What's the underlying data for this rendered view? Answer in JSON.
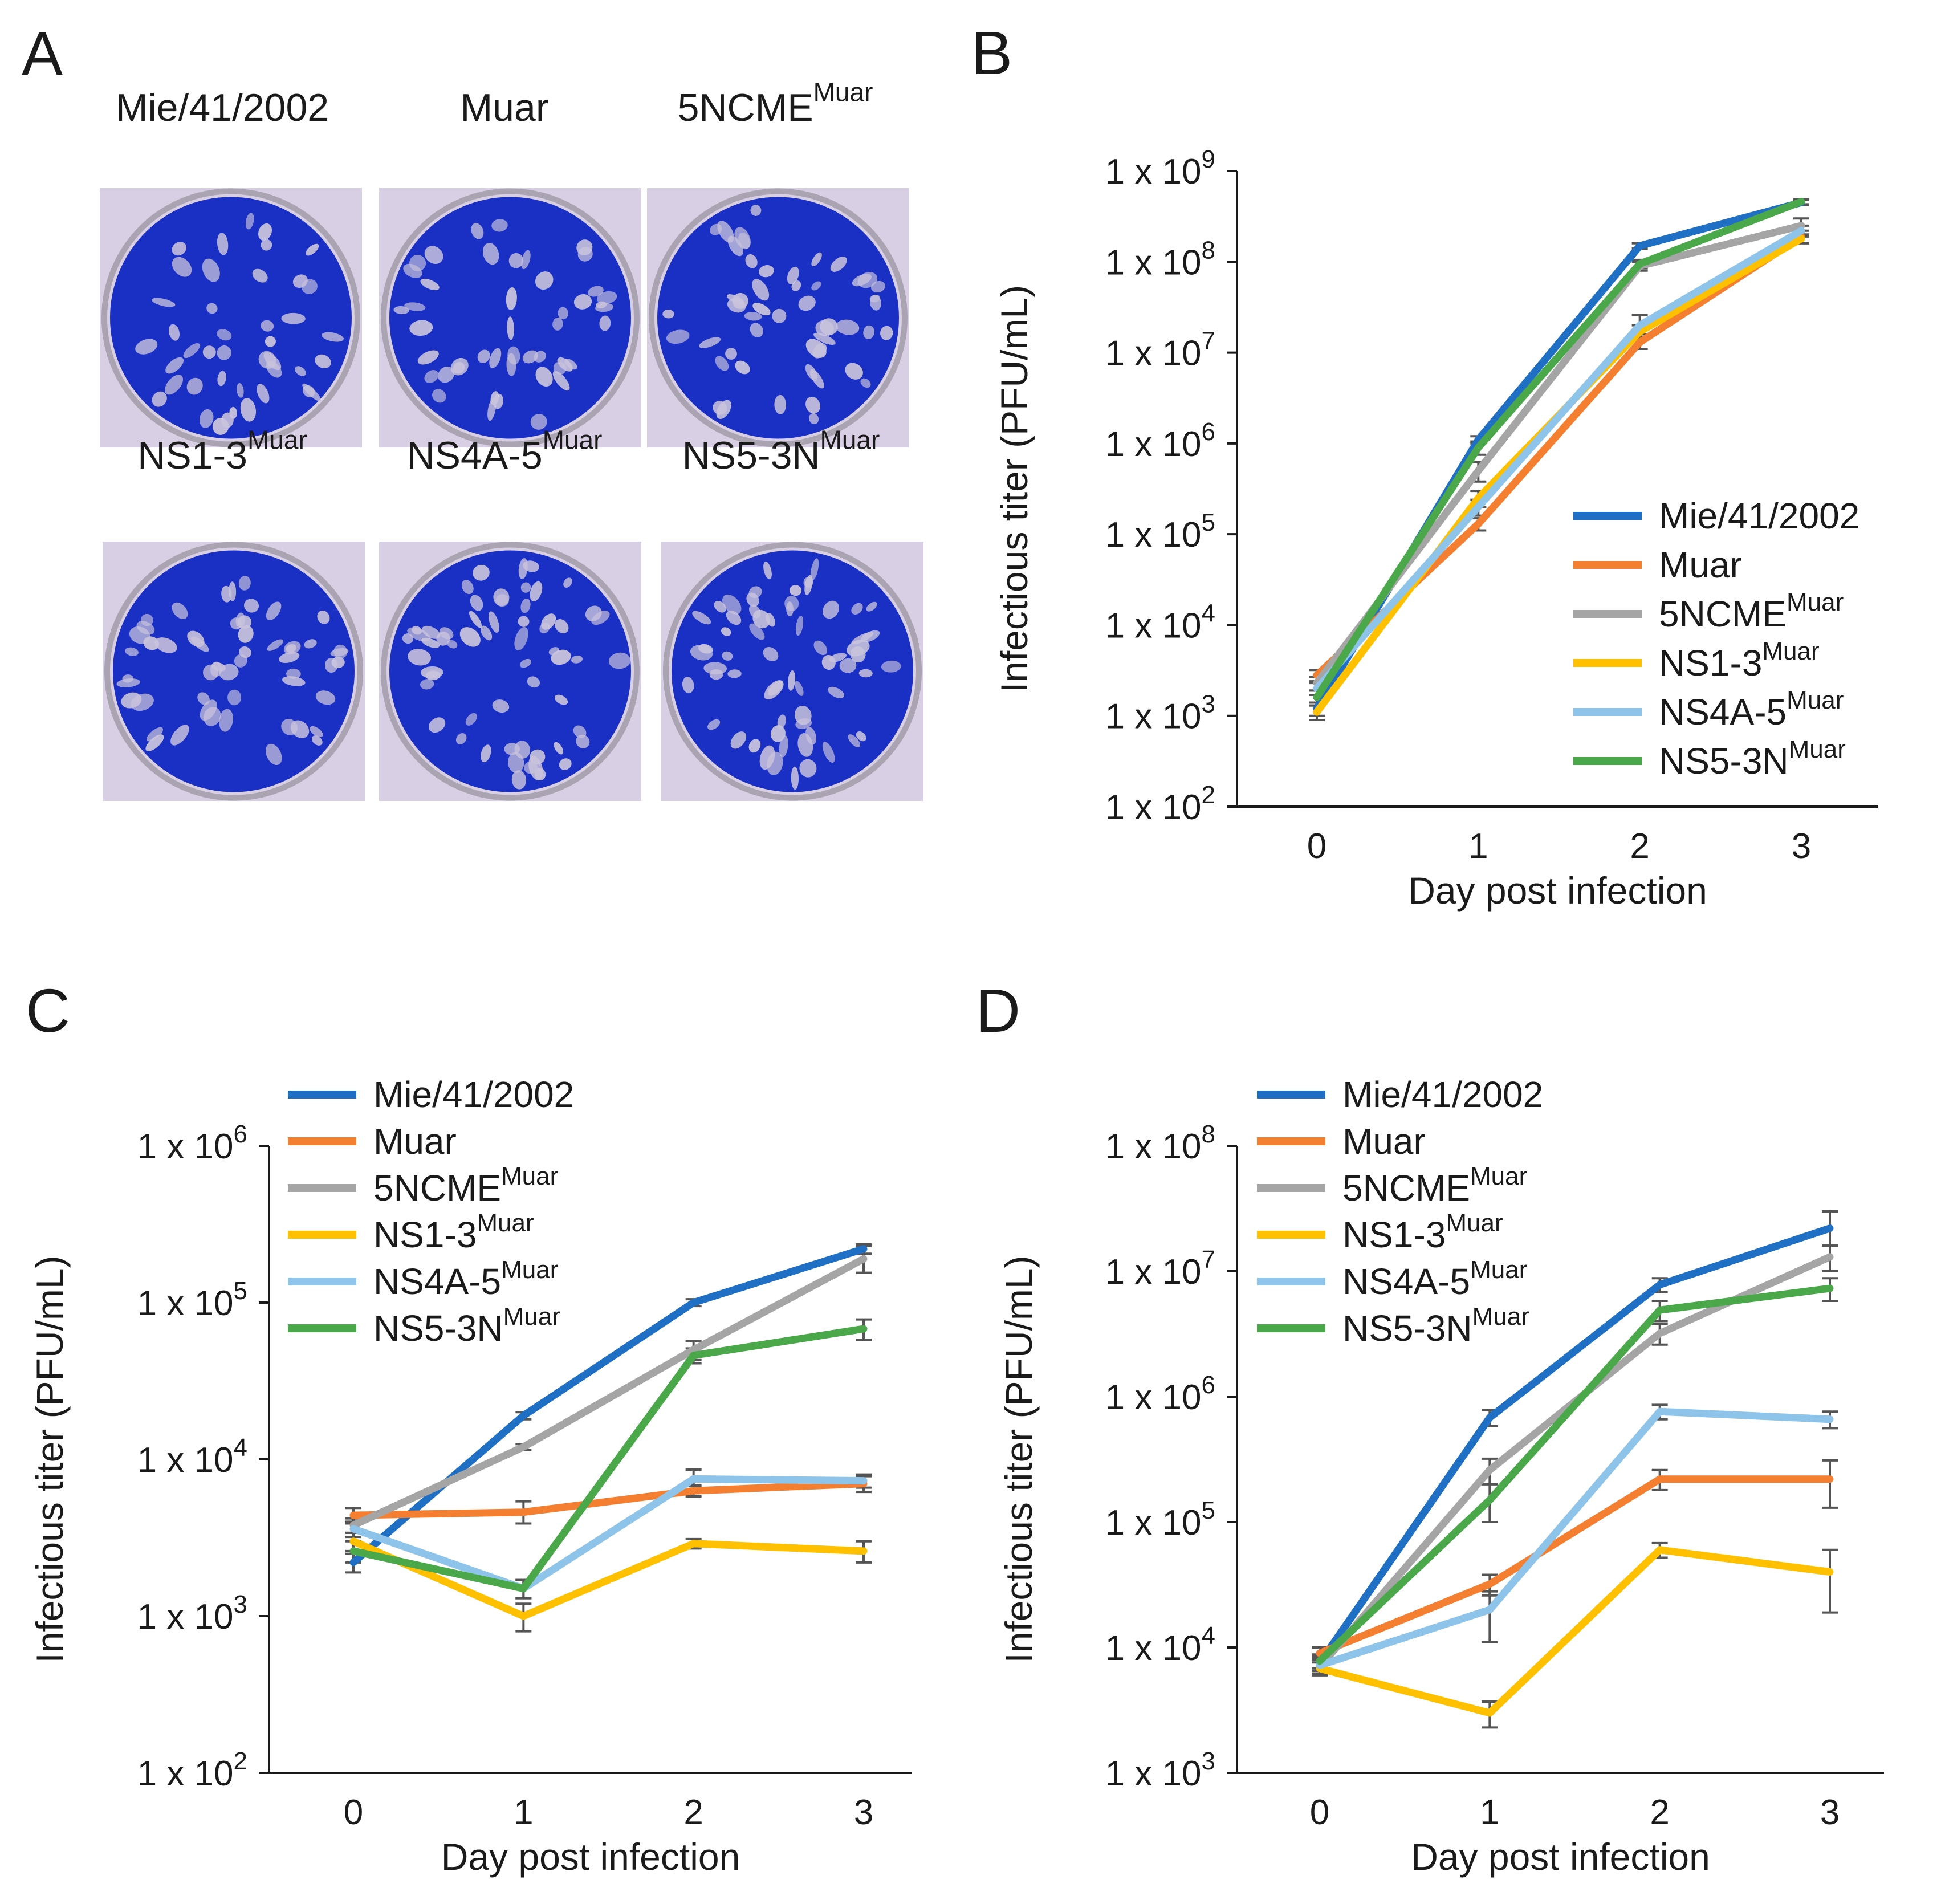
{
  "colors": {
    "Mie/41/2002": "#1f6fc5",
    "Muar": "#f47f30",
    "5NCME": "#a5a5a5",
    "NS1-3": "#ffc000",
    "NS4A-5": "#8ec3ea",
    "NS5-3N": "#4aa84a",
    "well_blue": "#1a2fc4",
    "plate_bg": "#d9cfe4"
  },
  "panel_a": {
    "letter": "A",
    "wells": [
      {
        "name": "Mie/41/2002",
        "sup": ""
      },
      {
        "name": "Muar",
        "sup": ""
      },
      {
        "name": "5NCME",
        "sup": "Muar"
      },
      {
        "name": "NS1-3",
        "sup": "Muar"
      },
      {
        "name": "NS4A-5",
        "sup": "Muar"
      },
      {
        "name": "NS5-3N",
        "sup": "Muar"
      }
    ]
  },
  "chart_data": [
    {
      "panel": "B",
      "type": "line",
      "ylabel": "Infectious titer (PFU/mL)",
      "xlabel": "Day post infection",
      "y_scale": "log",
      "ylim_exp": [
        2,
        9
      ],
      "x": [
        0,
        1,
        2,
        3
      ],
      "x_tick_labels": [
        "0",
        "1",
        "2",
        "3"
      ],
      "y_tick_labels": [
        {
          "base": "1 x 10",
          "exp": "2"
        },
        {
          "base": "1 x 10",
          "exp": "3"
        },
        {
          "base": "1 x 10",
          "exp": "4"
        },
        {
          "base": "1 x 10",
          "exp": "5"
        },
        {
          "base": "1 x 10",
          "exp": "6"
        },
        {
          "base": "1 x 10",
          "exp": "7"
        },
        {
          "base": "1 x 10",
          "exp": "8"
        },
        {
          "base": "1 x 10",
          "exp": "9"
        }
      ],
      "legend_position": "right",
      "series": [
        {
          "name": "Mie/41/2002",
          "sup": "",
          "values": [
            1200.0,
            1100000.0,
            150000000.0,
            450000000.0
          ],
          "err_lo": [
            1000.0,
            1000000.0,
            140000000.0,
            420000000.0
          ],
          "err_hi": [
            1400.0,
            1200000.0,
            160000000.0,
            480000000.0
          ]
        },
        {
          "name": "Muar",
          "sup": "",
          "values": [
            2800.0,
            130000.0,
            13000000.0,
            190000000.0
          ],
          "err_lo": [
            2400.0,
            110000.0,
            11000000.0,
            160000000.0
          ],
          "err_hi": [
            3200.0,
            150000.0,
            15000000.0,
            220000000.0
          ]
        },
        {
          "name": "5NCME",
          "sup": "Muar",
          "values": [
            2300.0,
            500000.0,
            90000000.0,
            250000000.0
          ],
          "err_lo": [
            1900.0,
            380000.0,
            80000000.0,
            200000000.0
          ],
          "err_hi": [
            2700.0,
            620000.0,
            100000000.0,
            300000000.0
          ]
        },
        {
          "name": "NS1-3",
          "sup": "Muar",
          "values": [
            1100.0,
            250000.0,
            17000000.0,
            180000000.0
          ],
          "err_lo": [
            900.0,
            200000.0,
            14000000.0,
            160000000.0
          ],
          "err_hi": [
            1300.0,
            300000.0,
            20000000.0,
            200000000.0
          ]
        },
        {
          "name": "NS4A-5",
          "sup": "Muar",
          "values": [
            2000.0,
            200000.0,
            20000000.0,
            220000000.0
          ],
          "err_lo": [
            1700.0,
            160000.0,
            16000000.0,
            190000000.0
          ],
          "err_hi": [
            2300.0,
            240000.0,
            26000000.0,
            250000000.0
          ]
        },
        {
          "name": "NS5-3N",
          "sup": "Muar",
          "values": [
            1600.0,
            900000.0,
            95000000.0,
            460000000.0
          ],
          "err_lo": [
            1300.0,
            750000.0,
            85000000.0,
            430000000.0
          ],
          "err_hi": [
            1900.0,
            1050000.0,
            105000000.0,
            490000000.0
          ]
        }
      ]
    },
    {
      "panel": "C",
      "type": "line",
      "ylabel": "Infectious titer (PFU/mL)",
      "xlabel": "Day post infection",
      "y_scale": "log",
      "ylim_exp": [
        2,
        6
      ],
      "x": [
        0,
        1,
        2,
        3
      ],
      "x_tick_labels": [
        "0",
        "1",
        "2",
        "3"
      ],
      "y_tick_labels": [
        {
          "base": "1 x 10",
          "exp": "2"
        },
        {
          "base": "1 x 10",
          "exp": "3"
        },
        {
          "base": "1 x 10",
          "exp": "4"
        },
        {
          "base": "1 x 10",
          "exp": "5"
        },
        {
          "base": "1 x 10",
          "exp": "6"
        }
      ],
      "legend_position": "top-left",
      "series": [
        {
          "name": "Mie/41/2002",
          "sup": "",
          "values": [
            2200.0,
            19000.0,
            100000.0,
            220000.0
          ],
          "err_lo": [
            1900.0,
            18000.0,
            95000.0,
            205000.0
          ],
          "err_hi": [
            2500.0,
            20000.0,
            105000.0,
            235000.0
          ]
        },
        {
          "name": "Muar",
          "sup": "",
          "values": [
            4400.0,
            4600.0,
            6300.0,
            7000.0
          ],
          "err_lo": [
            3900.0,
            3900.0,
            5800.0,
            6200.0
          ],
          "err_hi": [
            4900.0,
            5400.0,
            6800.0,
            7800.0
          ]
        },
        {
          "name": "5NCME",
          "sup": "Muar",
          "values": [
            3800.0,
            12000.0,
            50000.0,
            190000.0
          ],
          "err_lo": [
            3400.0,
            11500.0,
            43000.0,
            155000.0
          ],
          "err_hi": [
            4200.0,
            12500.0,
            57000.0,
            230000.0
          ]
        },
        {
          "name": "NS1-3",
          "sup": "Muar",
          "values": [
            3000.0,
            1000.0,
            2900.0,
            2600.0
          ],
          "err_lo": [
            2600.0,
            800.0,
            2700.0,
            2200.0
          ],
          "err_hi": [
            3400.0,
            1200.0,
            3100.0,
            3000.0
          ]
        },
        {
          "name": "NS4A-5",
          "sup": "Muar",
          "values": [
            3600.0,
            1500.0,
            7500.0,
            7300.0
          ],
          "err_lo": [
            3200.0,
            1300.0,
            6400.0,
            6600.0
          ],
          "err_hi": [
            4000.0,
            1700.0,
            8600.0,
            8000.0
          ]
        },
        {
          "name": "NS5-3N",
          "sup": "Muar",
          "values": [
            2600.0,
            1500.0,
            46000.0,
            68000.0
          ],
          "err_lo": [
            2200.0,
            1300.0,
            41000.0,
            58000.0
          ],
          "err_hi": [
            3000.0,
            1700.0,
            51000.0,
            78000.0
          ]
        }
      ]
    },
    {
      "panel": "D",
      "type": "line",
      "ylabel": "Infectious titer (PFU/mL)",
      "xlabel": "Day post infection",
      "y_scale": "log",
      "ylim_exp": [
        3,
        8
      ],
      "x": [
        0,
        1,
        2,
        3
      ],
      "x_tick_labels": [
        "0",
        "1",
        "2",
        "3"
      ],
      "y_tick_labels": [
        {
          "base": "1 x 10",
          "exp": "3"
        },
        {
          "base": "1 x 10",
          "exp": "4"
        },
        {
          "base": "1 x 10",
          "exp": "5"
        },
        {
          "base": "1 x 10",
          "exp": "6"
        },
        {
          "base": "1 x 10",
          "exp": "7"
        },
        {
          "base": "1 x 10",
          "exp": "8"
        }
      ],
      "legend_position": "top-left",
      "series": [
        {
          "name": "Mie/41/2002",
          "sup": "",
          "values": [
            7500.0,
            680000.0,
            7800000.0,
            22000000.0
          ],
          "err_lo": [
            6500.0,
            580000.0,
            6800000.0,
            16000000.0
          ],
          "err_hi": [
            8500.0,
            780000.0,
            8800000.0,
            30000000.0
          ]
        },
        {
          "name": "Muar",
          "sup": "",
          "values": [
            9000.0,
            32000.0,
            220000.0,
            220000.0
          ],
          "err_lo": [
            8000.0,
            26000.0,
            180000.0,
            130000.0
          ],
          "err_hi": [
            10000.0,
            38000.0,
            260000.0,
            310000.0
          ]
        },
        {
          "name": "5NCME",
          "sup": "Muar",
          "values": [
            7000.0,
            260000.0,
            3200000.0,
            13000000.0
          ],
          "err_lo": [
            6000.0,
            200000.0,
            2600000.0,
            10000000.0
          ],
          "err_hi": [
            8000.0,
            320000.0,
            3800000.0,
            16000000.0
          ]
        },
        {
          "name": "NS1-3",
          "sup": "Muar",
          "values": [
            6800.0,
            3000.0,
            60000.0,
            40000.0
          ],
          "err_lo": [
            6000.0,
            2300.0,
            52000.0,
            19000.0
          ],
          "err_hi": [
            7600.0,
            3700.0,
            68000.0,
            60000.0
          ]
        },
        {
          "name": "NS4A-5",
          "sup": "Muar",
          "values": [
            7200.0,
            20000.0,
            760000.0,
            660000.0
          ],
          "err_lo": [
            6200.0,
            11000.0,
            660000.0,
            560000.0
          ],
          "err_hi": [
            8200.0,
            28000.0,
            860000.0,
            760000.0
          ]
        },
        {
          "name": "NS5-3N",
          "sup": "Muar",
          "values": [
            7800.0,
            150000.0,
            4900000.0,
            7300000.0
          ],
          "err_lo": [
            6800.0,
            100000.0,
            4000000.0,
            5800000.0
          ],
          "err_hi": [
            8800.0,
            200000.0,
            5800000.0,
            8800000.0
          ]
        }
      ]
    }
  ]
}
